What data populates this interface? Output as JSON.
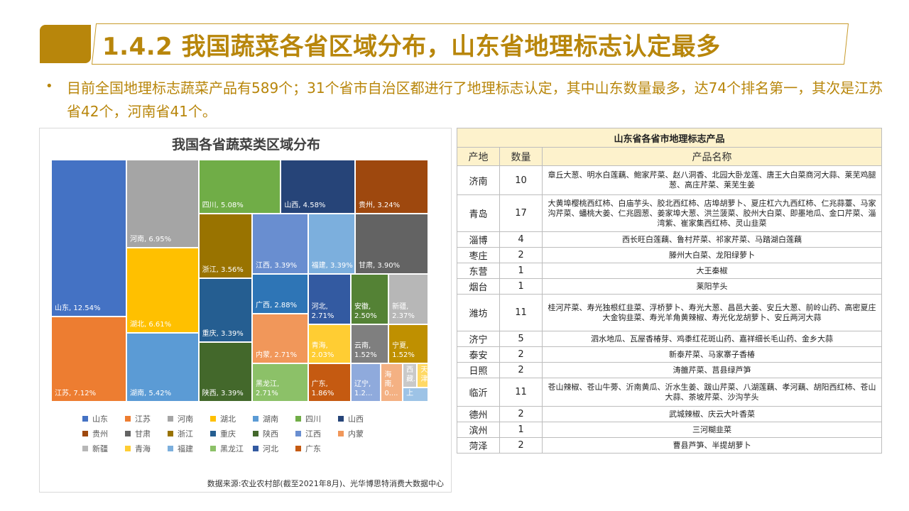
{
  "header": {
    "title": "1.4.2 我国蔬菜各省区域分布，山东省地理标志认定最多",
    "subtitle": "目前全国地理标志蔬菜产品有589个；31个省市自治区都进行了地理标志认定，其中山东数量最多，达74个排名第一，其次是江苏省42个，河南省41个。",
    "bullet": "•"
  },
  "chart_data": {
    "type": "treemap",
    "title": "我国各省蔬菜类区域分布",
    "source": "数据来源:农业农村部(截至2021年8月)、光华博思特消费大数据中心",
    "series": [
      {
        "name": "山东",
        "value": 12.54,
        "label": "山东, 12.54%",
        "color": "#4472c4"
      },
      {
        "name": "江苏",
        "value": 7.12,
        "label": "江苏, 7.12%",
        "color": "#ed7d31"
      },
      {
        "name": "河南",
        "value": 6.95,
        "label": "河南, 6.95%",
        "color": "#a5a5a5"
      },
      {
        "name": "湖北",
        "value": 6.61,
        "label": "湖北, 6.61%",
        "color": "#ffc000"
      },
      {
        "name": "湖南",
        "value": 5.42,
        "label": "湖南, 5.42%",
        "color": "#5b9bd5"
      },
      {
        "name": "四川",
        "value": 5.08,
        "label": "四川, 5.08%",
        "color": "#70ad47"
      },
      {
        "name": "山西",
        "value": 4.58,
        "label": "山西, 4.58%",
        "color": "#264478"
      },
      {
        "name": "贵州",
        "value": 3.24,
        "label": "贵州, 3.24%",
        "color": "#9e480e"
      },
      {
        "name": "甘肃",
        "value": 3.9,
        "label": "甘肃, 3.90%",
        "color": "#636363"
      },
      {
        "name": "浙江",
        "value": 3.56,
        "label": "浙江, 3.56%",
        "color": "#997300"
      },
      {
        "name": "重庆",
        "value": 3.39,
        "label": "重庆, 3.39%",
        "color": "#255e91"
      },
      {
        "name": "陕西",
        "value": 3.39,
        "label": "陕西, 3.39%",
        "color": "#43682b"
      },
      {
        "name": "江西",
        "value": 3.39,
        "label": "江西, 3.39%",
        "color": "#698ed0"
      },
      {
        "name": "内蒙",
        "value": 2.71,
        "label": "内蒙, 2.71%",
        "color": "#f1975a"
      },
      {
        "name": "新疆",
        "value": 2.37,
        "label": "新疆,\n2.37%",
        "color": "#b7b7b7"
      },
      {
        "name": "青海",
        "value": 2.03,
        "label": "青海,\n2.03%",
        "color": "#ffcd33"
      },
      {
        "name": "福建",
        "value": 3.39,
        "label": "福建, 3.39%",
        "color": "#7cafdd"
      },
      {
        "name": "黑龙江",
        "value": 2.71,
        "label": "黑龙江,\n2.71%",
        "color": "#8cc168"
      },
      {
        "name": "河北",
        "value": 2.71,
        "label": "河北,\n2.71%",
        "color": "#335aa1"
      },
      {
        "name": "广东",
        "value": 1.86,
        "label": "广东,\n1.86%",
        "color": "#c55a11"
      },
      {
        "name": "广西",
        "value": 2.88,
        "label": "广西, 2.88%",
        "color": "#2e75b6"
      },
      {
        "name": "安徽",
        "value": 2.5,
        "label": "安徽,\n2.50%",
        "color": "#548235"
      },
      {
        "name": "云南",
        "value": 1.52,
        "label": "云南,\n1.52%",
        "color": "#7f7f7f"
      },
      {
        "name": "宁夏",
        "value": 1.52,
        "label": "宁夏,\n1.52%",
        "color": "#bf9000"
      },
      {
        "name": "辽宁",
        "value": null,
        "label": "辽宁,\n1.2...",
        "color": "#8faadc"
      },
      {
        "name": "海南",
        "value": null,
        "label": "海\n南,\n0....",
        "color": "#f4b183"
      },
      {
        "name": "西藏",
        "value": null,
        "label": "西\n藏...",
        "color": "#c9c9c9"
      },
      {
        "name": "天津",
        "value": null,
        "label": "天\n津...",
        "color": "#ffd966"
      },
      {
        "name": "上海",
        "value": null,
        "label": "上",
        "color": "#9dc3e6"
      }
    ],
    "legend": [
      [
        "山东",
        "江苏",
        "河南",
        "湖北",
        "湖南",
        "四川",
        "山西"
      ],
      [
        "贵州",
        "甘肃",
        "浙江",
        "重庆",
        "陕西",
        "江西",
        "内蒙"
      ],
      [
        "新疆",
        "青海",
        "福建",
        "黑龙江",
        "河北",
        "广东"
      ]
    ]
  },
  "table": {
    "caption": "山东省各省市地理标志产品",
    "headers": [
      "产地",
      "数量",
      "产品名称"
    ],
    "rows": [
      {
        "city": "济南",
        "count": "10",
        "products": "章丘大葱、明水白莲藕、鲍家芹菜、赵八洞香、北园大卧龙莲、唐王大白菜商河大蒜、莱芜鸡腿葱、高庄芹菜、莱芜生姜"
      },
      {
        "city": "青岛",
        "count": "17",
        "products": "大黄埠樱桃西红柿、白庙芋头、胶北西红柿、店埠胡萝卜、夏庄杠六九西红柿、仁兆蒜薹、马家沟芹菜、蟠桃大姜、仁兆圆葱、姜家埠大葱、洪兰菠菜、胶州大白菜、即墨地瓜、金口芹菜、淄湾紫、崔家集西红柿、灵山韭菜"
      },
      {
        "city": "淄博",
        "count": "4",
        "products": "西长旺白莲藕、鲁村芹菜、祁家芹菜、马踏湖白莲藕"
      },
      {
        "city": "枣庄",
        "count": "2",
        "products": "滕州大白菜、龙阳绿萝卜"
      },
      {
        "city": "东营",
        "count": "1",
        "products": "大王秦椒"
      },
      {
        "city": "烟台",
        "count": "1",
        "products": "莱阳芋头"
      },
      {
        "city": "潍坊",
        "count": "11",
        "products": "桂河芹菜、寿光独根红韭菜、浮桥萝卜、寿光大葱、昌邑大姜、安丘大葱、前岭山药、高密夏庄大金钩韭菜、寿光羊角黄辣椒、寿光化龙胡萝卜、安丘两河大蒜"
      },
      {
        "city": "济宁",
        "count": "5",
        "products": "泗水地瓜、瓦屋香椿芽、鸡黍红花斑山药、嘉祥细长毛山药、金乡大蒜"
      },
      {
        "city": "泰安",
        "count": "2",
        "products": "新泰芹菜、马家寨子香椿"
      },
      {
        "city": "日照",
        "count": "2",
        "products": "涛雒芹菜、莒县绿芦笋"
      },
      {
        "city": "临沂",
        "count": "11",
        "products": "苍山辣椒、苍山牛蒡、沂南黄瓜、沂水生姜、跋山芹菜、八湖莲藕、孝河藕、胡阳西红柿、苍山大蒜、茶坡芹菜、沙沟芋头"
      },
      {
        "city": "德州",
        "count": "2",
        "products": "武城辣椒、庆云大叶香菜"
      },
      {
        "city": "滨州",
        "count": "1",
        "products": "三河糊韭菜"
      },
      {
        "city": "菏泽",
        "count": "2",
        "products": "曹县芦笋、半提胡萝卜"
      }
    ]
  }
}
